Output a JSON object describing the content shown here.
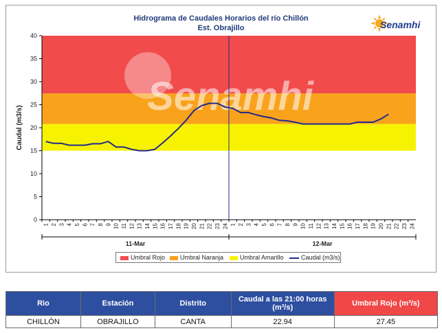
{
  "chart_data": {
    "type": "line",
    "title": "Hidrograma de Caudales Horarios del río Chillón",
    "subtitle": "Est. Obrajillo",
    "logo": "Senamhi",
    "watermark": "Senamhi",
    "ylabel": "Caudal  (m3/s)",
    "ylim": [
      0,
      40
    ],
    "yticks": [
      "0",
      "5",
      "10",
      "15",
      "20",
      "25",
      "30",
      "35",
      "40"
    ],
    "x_hours": [
      "1",
      "2",
      "3",
      "4",
      "5",
      "6",
      "7",
      "8",
      "9",
      "10",
      "11",
      "12",
      "13",
      "14",
      "15",
      "16",
      "17",
      "18",
      "19",
      "20",
      "21",
      "22",
      "23",
      "24",
      "1",
      "2",
      "3",
      "4",
      "5",
      "6",
      "7",
      "8",
      "9",
      "10",
      "11",
      "12",
      "13",
      "14",
      "15",
      "16",
      "17",
      "18",
      "19",
      "20",
      "21",
      "22",
      "23",
      "24"
    ],
    "day_labels": [
      "11-Mar",
      "12-Mar"
    ],
    "thresholds": [
      {
        "name": "Umbral Rojo",
        "from": 27.45,
        "to": 40,
        "color": "#f24b4b"
      },
      {
        "name": "Umbral Naranja",
        "from": 20.8,
        "to": 27.45,
        "color": "#f9a21c"
      },
      {
        "name": "Umbral Amarillo",
        "from": 15.0,
        "to": 20.8,
        "color": "#f7f300"
      }
    ],
    "series": [
      {
        "name": "Caudal (m3/s)",
        "color": "#1f2a8a",
        "values": [
          17.0,
          16.6,
          16.6,
          16.2,
          16.2,
          16.2,
          16.5,
          16.5,
          17.0,
          15.8,
          15.8,
          15.3,
          15.0,
          15.0,
          15.3,
          16.7,
          18.2,
          19.8,
          21.6,
          23.7,
          24.8,
          25.3,
          25.3,
          24.5,
          24.2,
          23.3,
          23.3,
          22.8,
          22.4,
          22.1,
          21.6,
          21.5,
          21.2,
          20.8,
          20.8,
          20.8,
          20.8,
          20.8,
          20.8,
          20.8,
          21.2,
          21.2,
          21.2,
          21.9,
          22.94
        ]
      }
    ],
    "legend": [
      "Umbral Rojo",
      "Umbral Naranja",
      "Umbral Amarillo",
      "Caudal (m3/s)"
    ],
    "legend_position": "bottom",
    "grid": false
  },
  "table": {
    "headers": [
      "Rio",
      "Estación",
      "Distrito",
      "Caudal a las 21:00 horas (m³/s)",
      "Umbral Rojo (m³/s)"
    ],
    "row": [
      "CHILLÓN",
      "OBRAJILLO",
      "CANTA",
      "22.94",
      "27.45"
    ],
    "header_color": "#2e4fa0",
    "header_red_color": "#f04747"
  }
}
